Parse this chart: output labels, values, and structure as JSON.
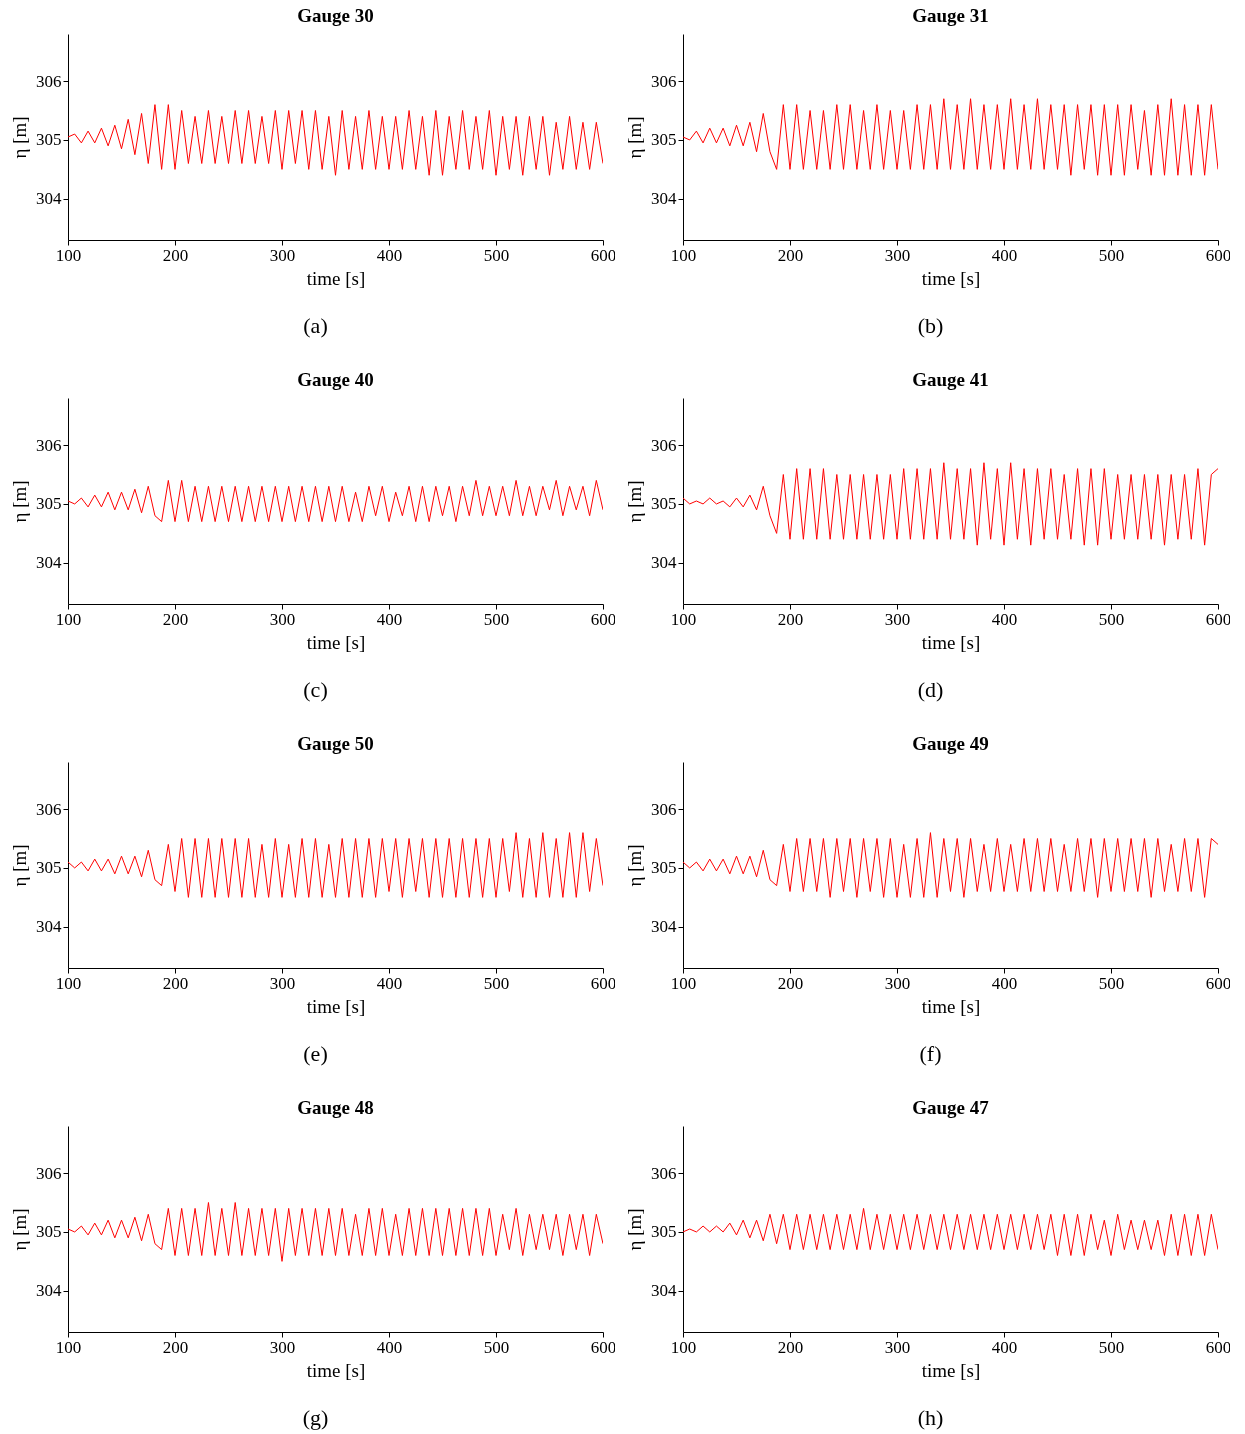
{
  "chart_data": [
    {
      "type": "line",
      "title": "Gauge 30",
      "xlabel": "time [s]",
      "ylabel": "η [m]",
      "annotations": [
        "(a)"
      ],
      "xlim": [
        100,
        600
      ],
      "ylim": [
        303.3,
        306.8
      ],
      "xticks": [
        100,
        200,
        300,
        400,
        500,
        600
      ],
      "yticks": [
        304,
        305,
        306
      ],
      "x": [
        100,
        106.25,
        112.5,
        118.75,
        125,
        131.25,
        137.5,
        143.75,
        150,
        156.25,
        162.5,
        168.75,
        175,
        181.25,
        187.5,
        193.75,
        200,
        206.25,
        212.5,
        218.75,
        225,
        231.25,
        237.5,
        243.75,
        250,
        256.25,
        262.5,
        268.75,
        275,
        281.25,
        287.5,
        293.75,
        300,
        306.25,
        312.5,
        318.75,
        325,
        331.25,
        337.5,
        343.75,
        350,
        356.25,
        362.5,
        368.75,
        375,
        381.25,
        387.5,
        393.75,
        400,
        406.25,
        412.5,
        418.75,
        425,
        431.25,
        437.5,
        443.75,
        450,
        456.25,
        462.5,
        468.75,
        475,
        481.25,
        487.5,
        493.75,
        500,
        506.25,
        512.5,
        518.75,
        525,
        531.25,
        537.5,
        543.75,
        550,
        556.25,
        562.5,
        568.75,
        575,
        581.25,
        587.5,
        593.75,
        600
      ],
      "series": [
        {
          "color": "#ff0000",
          "values": [
            305.05,
            305.1,
            304.95,
            305.15,
            304.95,
            305.2,
            304.9,
            305.25,
            304.85,
            305.35,
            304.75,
            305.45,
            304.6,
            305.6,
            304.5,
            305.6,
            304.5,
            305.5,
            304.6,
            305.4,
            304.6,
            305.5,
            304.6,
            305.4,
            304.6,
            305.5,
            304.6,
            305.5,
            304.6,
            305.4,
            304.6,
            305.5,
            304.5,
            305.5,
            304.6,
            305.5,
            304.5,
            305.5,
            304.5,
            305.4,
            304.4,
            305.5,
            304.5,
            305.4,
            304.5,
            305.5,
            304.5,
            305.4,
            304.5,
            305.4,
            304.5,
            305.5,
            304.5,
            305.4,
            304.4,
            305.5,
            304.4,
            305.4,
            304.5,
            305.5,
            304.5,
            305.4,
            304.5,
            305.5,
            304.4,
            305.4,
            304.5,
            305.4,
            304.4,
            305.4,
            304.5,
            305.4,
            304.4,
            305.3,
            304.5,
            305.4,
            304.5,
            305.3,
            304.5,
            305.3,
            304.6
          ]
        }
      ]
    },
    {
      "type": "line",
      "title": "Gauge 31",
      "xlabel": "time [s]",
      "ylabel": "η [m]",
      "annotations": [
        "(b)"
      ],
      "xlim": [
        100,
        600
      ],
      "ylim": [
        303.3,
        306.8
      ],
      "xticks": [
        100,
        200,
        300,
        400,
        500,
        600
      ],
      "yticks": [
        304,
        305,
        306
      ],
      "x": [
        100,
        106.25,
        112.5,
        118.75,
        125,
        131.25,
        137.5,
        143.75,
        150,
        156.25,
        162.5,
        168.75,
        175,
        181.25,
        187.5,
        193.75,
        200,
        206.25,
        212.5,
        218.75,
        225,
        231.25,
        237.5,
        243.75,
        250,
        256.25,
        262.5,
        268.75,
        275,
        281.25,
        287.5,
        293.75,
        300,
        306.25,
        312.5,
        318.75,
        325,
        331.25,
        337.5,
        343.75,
        350,
        356.25,
        362.5,
        368.75,
        375,
        381.25,
        387.5,
        393.75,
        400,
        406.25,
        412.5,
        418.75,
        425,
        431.25,
        437.5,
        443.75,
        450,
        456.25,
        462.5,
        468.75,
        475,
        481.25,
        487.5,
        493.75,
        500,
        506.25,
        512.5,
        518.75,
        525,
        531.25,
        537.5,
        543.75,
        550,
        556.25,
        562.5,
        568.75,
        575,
        581.25,
        587.5,
        593.75,
        600
      ],
      "series": [
        {
          "color": "#ff0000",
          "values": [
            305.05,
            305.0,
            305.15,
            304.95,
            305.2,
            304.95,
            305.2,
            304.9,
            305.25,
            304.9,
            305.3,
            304.8,
            305.45,
            304.8,
            304.5,
            305.6,
            304.5,
            305.6,
            304.5,
            305.5,
            304.5,
            305.5,
            304.5,
            305.6,
            304.5,
            305.6,
            304.5,
            305.5,
            304.5,
            305.6,
            304.5,
            305.5,
            304.5,
            305.5,
            304.5,
            305.6,
            304.5,
            305.6,
            304.5,
            305.7,
            304.5,
            305.6,
            304.5,
            305.7,
            304.5,
            305.6,
            304.5,
            305.6,
            304.5,
            305.7,
            304.5,
            305.6,
            304.5,
            305.7,
            304.5,
            305.6,
            304.5,
            305.6,
            304.4,
            305.6,
            304.5,
            305.6,
            304.4,
            305.6,
            304.4,
            305.6,
            304.4,
            305.6,
            304.5,
            305.5,
            304.4,
            305.6,
            304.4,
            305.7,
            304.4,
            305.6,
            304.4,
            305.6,
            304.4,
            305.6,
            304.5
          ]
        }
      ]
    },
    {
      "type": "line",
      "title": "Gauge 40",
      "xlabel": "time [s]",
      "ylabel": "η [m]",
      "annotations": [
        "(c)"
      ],
      "xlim": [
        100,
        600
      ],
      "ylim": [
        303.3,
        306.8
      ],
      "xticks": [
        100,
        200,
        300,
        400,
        500,
        600
      ],
      "yticks": [
        304,
        305,
        306
      ],
      "x": [
        100,
        106.25,
        112.5,
        118.75,
        125,
        131.25,
        137.5,
        143.75,
        150,
        156.25,
        162.5,
        168.75,
        175,
        181.25,
        187.5,
        193.75,
        200,
        206.25,
        212.5,
        218.75,
        225,
        231.25,
        237.5,
        243.75,
        250,
        256.25,
        262.5,
        268.75,
        275,
        281.25,
        287.5,
        293.75,
        300,
        306.25,
        312.5,
        318.75,
        325,
        331.25,
        337.5,
        343.75,
        350,
        356.25,
        362.5,
        368.75,
        375,
        381.25,
        387.5,
        393.75,
        400,
        406.25,
        412.5,
        418.75,
        425,
        431.25,
        437.5,
        443.75,
        450,
        456.25,
        462.5,
        468.75,
        475,
        481.25,
        487.5,
        493.75,
        500,
        506.25,
        512.5,
        518.75,
        525,
        531.25,
        537.5,
        543.75,
        550,
        556.25,
        562.5,
        568.75,
        575,
        581.25,
        587.5,
        593.75,
        600
      ],
      "series": [
        {
          "color": "#ff0000",
          "values": [
            305.05,
            305.0,
            305.1,
            304.95,
            305.15,
            304.95,
            305.2,
            304.9,
            305.2,
            304.9,
            305.25,
            304.85,
            305.3,
            304.8,
            304.7,
            305.4,
            304.7,
            305.4,
            304.7,
            305.3,
            304.7,
            305.3,
            304.7,
            305.3,
            304.7,
            305.3,
            304.7,
            305.3,
            304.7,
            305.3,
            304.7,
            305.3,
            304.7,
            305.3,
            304.7,
            305.3,
            304.7,
            305.3,
            304.7,
            305.3,
            304.7,
            305.3,
            304.7,
            305.2,
            304.7,
            305.3,
            304.8,
            305.3,
            304.7,
            305.2,
            304.8,
            305.3,
            304.7,
            305.3,
            304.7,
            305.3,
            304.8,
            305.3,
            304.7,
            305.3,
            304.8,
            305.4,
            304.8,
            305.3,
            304.8,
            305.3,
            304.8,
            305.4,
            304.8,
            305.3,
            304.8,
            305.3,
            304.9,
            305.4,
            304.8,
            305.3,
            304.9,
            305.3,
            304.8,
            305.4,
            304.9
          ]
        }
      ]
    },
    {
      "type": "line",
      "title": "Gauge 41",
      "xlabel": "time [s]",
      "ylabel": "η [m]",
      "annotations": [
        "(d)"
      ],
      "xlim": [
        100,
        600
      ],
      "ylim": [
        303.3,
        306.8
      ],
      "xticks": [
        100,
        200,
        300,
        400,
        500,
        600
      ],
      "yticks": [
        304,
        305,
        306
      ],
      "x": [
        100,
        106.25,
        112.5,
        118.75,
        125,
        131.25,
        137.5,
        143.75,
        150,
        156.25,
        162.5,
        168.75,
        175,
        181.25,
        187.5,
        193.75,
        200,
        206.25,
        212.5,
        218.75,
        225,
        231.25,
        237.5,
        243.75,
        250,
        256.25,
        262.5,
        268.75,
        275,
        281.25,
        287.5,
        293.75,
        300,
        306.25,
        312.5,
        318.75,
        325,
        331.25,
        337.5,
        343.75,
        350,
        356.25,
        362.5,
        368.75,
        375,
        381.25,
        387.5,
        393.75,
        400,
        406.25,
        412.5,
        418.75,
        425,
        431.25,
        437.5,
        443.75,
        450,
        456.25,
        462.5,
        468.75,
        475,
        481.25,
        487.5,
        493.75,
        500,
        506.25,
        512.5,
        518.75,
        525,
        531.25,
        537.5,
        543.75,
        550,
        556.25,
        562.5,
        568.75,
        575,
        581.25,
        587.5,
        593.75,
        600
      ],
      "series": [
        {
          "color": "#ff0000",
          "values": [
            305.1,
            305.0,
            305.05,
            305.0,
            305.1,
            305.0,
            305.05,
            304.95,
            305.1,
            304.95,
            305.15,
            304.9,
            305.3,
            304.8,
            304.5,
            305.5,
            304.4,
            305.6,
            304.4,
            305.6,
            304.4,
            305.6,
            304.4,
            305.5,
            304.4,
            305.5,
            304.4,
            305.5,
            304.4,
            305.5,
            304.4,
            305.5,
            304.4,
            305.6,
            304.4,
            305.6,
            304.4,
            305.6,
            304.4,
            305.7,
            304.4,
            305.6,
            304.4,
            305.6,
            304.3,
            305.7,
            304.4,
            305.6,
            304.3,
            305.7,
            304.4,
            305.6,
            304.3,
            305.6,
            304.4,
            305.6,
            304.4,
            305.5,
            304.4,
            305.6,
            304.3,
            305.6,
            304.3,
            305.6,
            304.4,
            305.5,
            304.4,
            305.5,
            304.4,
            305.5,
            304.4,
            305.5,
            304.3,
            305.5,
            304.4,
            305.5,
            304.4,
            305.6,
            304.3,
            305.5,
            305.6
          ]
        }
      ]
    },
    {
      "type": "line",
      "title": "Gauge 50",
      "xlabel": "time [s]",
      "ylabel": "η [m]",
      "annotations": [
        "(e)"
      ],
      "xlim": [
        100,
        600
      ],
      "ylim": [
        303.3,
        306.8
      ],
      "xticks": [
        100,
        200,
        300,
        400,
        500,
        600
      ],
      "yticks": [
        304,
        305,
        306
      ],
      "x": [
        100,
        106.25,
        112.5,
        118.75,
        125,
        131.25,
        137.5,
        143.75,
        150,
        156.25,
        162.5,
        168.75,
        175,
        181.25,
        187.5,
        193.75,
        200,
        206.25,
        212.5,
        218.75,
        225,
        231.25,
        237.5,
        243.75,
        250,
        256.25,
        262.5,
        268.75,
        275,
        281.25,
        287.5,
        293.75,
        300,
        306.25,
        312.5,
        318.75,
        325,
        331.25,
        337.5,
        343.75,
        350,
        356.25,
        362.5,
        368.75,
        375,
        381.25,
        387.5,
        393.75,
        400,
        406.25,
        412.5,
        418.75,
        425,
        431.25,
        437.5,
        443.75,
        450,
        456.25,
        462.5,
        468.75,
        475,
        481.25,
        487.5,
        493.75,
        500,
        506.25,
        512.5,
        518.75,
        525,
        531.25,
        537.5,
        543.75,
        550,
        556.25,
        562.5,
        568.75,
        575,
        581.25,
        587.5,
        593.75,
        600
      ],
      "series": [
        {
          "color": "#ff0000",
          "values": [
            305.1,
            305.0,
            305.1,
            304.95,
            305.15,
            304.95,
            305.15,
            304.9,
            305.2,
            304.9,
            305.2,
            304.85,
            305.3,
            304.8,
            304.7,
            305.4,
            304.6,
            305.5,
            304.5,
            305.5,
            304.5,
            305.5,
            304.5,
            305.5,
            304.5,
            305.5,
            304.5,
            305.5,
            304.5,
            305.4,
            304.5,
            305.5,
            304.5,
            305.4,
            304.5,
            305.5,
            304.5,
            305.5,
            304.5,
            305.4,
            304.5,
            305.5,
            304.5,
            305.5,
            304.5,
            305.5,
            304.5,
            305.5,
            304.6,
            305.5,
            304.5,
            305.5,
            304.6,
            305.5,
            304.5,
            305.5,
            304.5,
            305.5,
            304.5,
            305.5,
            304.5,
            305.5,
            304.5,
            305.5,
            304.5,
            305.5,
            304.6,
            305.6,
            304.5,
            305.5,
            304.5,
            305.6,
            304.5,
            305.5,
            304.5,
            305.6,
            304.5,
            305.6,
            304.6,
            305.5,
            304.7
          ]
        }
      ]
    },
    {
      "type": "line",
      "title": "Gauge 49",
      "xlabel": "time [s]",
      "ylabel": "η [m]",
      "annotations": [
        "(f)"
      ],
      "xlim": [
        100,
        600
      ],
      "ylim": [
        303.3,
        306.8
      ],
      "xticks": [
        100,
        200,
        300,
        400,
        500,
        600
      ],
      "yticks": [
        304,
        305,
        306
      ],
      "x": [
        100,
        106.25,
        112.5,
        118.75,
        125,
        131.25,
        137.5,
        143.75,
        150,
        156.25,
        162.5,
        168.75,
        175,
        181.25,
        187.5,
        193.75,
        200,
        206.25,
        212.5,
        218.75,
        225,
        231.25,
        237.5,
        243.75,
        250,
        256.25,
        262.5,
        268.75,
        275,
        281.25,
        287.5,
        293.75,
        300,
        306.25,
        312.5,
        318.75,
        325,
        331.25,
        337.5,
        343.75,
        350,
        356.25,
        362.5,
        368.75,
        375,
        381.25,
        387.5,
        393.75,
        400,
        406.25,
        412.5,
        418.75,
        425,
        431.25,
        437.5,
        443.75,
        450,
        456.25,
        462.5,
        468.75,
        475,
        481.25,
        487.5,
        493.75,
        500,
        506.25,
        512.5,
        518.75,
        525,
        531.25,
        537.5,
        543.75,
        550,
        556.25,
        562.5,
        568.75,
        575,
        581.25,
        587.5,
        593.75,
        600
      ],
      "series": [
        {
          "color": "#ff0000",
          "values": [
            305.1,
            305.0,
            305.1,
            304.95,
            305.15,
            304.95,
            305.15,
            304.9,
            305.2,
            304.9,
            305.2,
            304.85,
            305.3,
            304.8,
            304.7,
            305.4,
            304.6,
            305.5,
            304.6,
            305.5,
            304.6,
            305.5,
            304.5,
            305.5,
            304.6,
            305.5,
            304.5,
            305.5,
            304.6,
            305.5,
            304.5,
            305.5,
            304.5,
            305.4,
            304.5,
            305.5,
            304.5,
            305.6,
            304.5,
            305.5,
            304.6,
            305.5,
            304.5,
            305.5,
            304.6,
            305.4,
            304.6,
            305.5,
            304.6,
            305.4,
            304.6,
            305.5,
            304.6,
            305.5,
            304.6,
            305.5,
            304.6,
            305.4,
            304.6,
            305.5,
            304.6,
            305.5,
            304.5,
            305.5,
            304.6,
            305.5,
            304.6,
            305.5,
            304.6,
            305.5,
            304.5,
            305.5,
            304.6,
            305.4,
            304.6,
            305.5,
            304.6,
            305.5,
            304.5,
            305.5,
            305.4
          ]
        }
      ]
    },
    {
      "type": "line",
      "title": "Gauge 48",
      "xlabel": "time [s]",
      "ylabel": "η [m]",
      "annotations": [
        "(g)"
      ],
      "xlim": [
        100,
        600
      ],
      "ylim": [
        303.3,
        306.8
      ],
      "xticks": [
        100,
        200,
        300,
        400,
        500,
        600
      ],
      "yticks": [
        304,
        305,
        306
      ],
      "x": [
        100,
        106.25,
        112.5,
        118.75,
        125,
        131.25,
        137.5,
        143.75,
        150,
        156.25,
        162.5,
        168.75,
        175,
        181.25,
        187.5,
        193.75,
        200,
        206.25,
        212.5,
        218.75,
        225,
        231.25,
        237.5,
        243.75,
        250,
        256.25,
        262.5,
        268.75,
        275,
        281.25,
        287.5,
        293.75,
        300,
        306.25,
        312.5,
        318.75,
        325,
        331.25,
        337.5,
        343.75,
        350,
        356.25,
        362.5,
        368.75,
        375,
        381.25,
        387.5,
        393.75,
        400,
        406.25,
        412.5,
        418.75,
        425,
        431.25,
        437.5,
        443.75,
        450,
        456.25,
        462.5,
        468.75,
        475,
        481.25,
        487.5,
        493.75,
        500,
        506.25,
        512.5,
        518.75,
        525,
        531.25,
        537.5,
        543.75,
        550,
        556.25,
        562.5,
        568.75,
        575,
        581.25,
        587.5,
        593.75,
        600
      ],
      "series": [
        {
          "color": "#ff0000",
          "values": [
            305.05,
            305.0,
            305.1,
            304.95,
            305.15,
            304.95,
            305.2,
            304.9,
            305.2,
            304.9,
            305.25,
            304.85,
            305.3,
            304.8,
            304.7,
            305.4,
            304.6,
            305.4,
            304.6,
            305.4,
            304.6,
            305.5,
            304.6,
            305.4,
            304.6,
            305.5,
            304.6,
            305.4,
            304.6,
            305.4,
            304.6,
            305.4,
            304.5,
            305.4,
            304.6,
            305.4,
            304.6,
            305.4,
            304.6,
            305.4,
            304.6,
            305.4,
            304.6,
            305.3,
            304.6,
            305.4,
            304.6,
            305.4,
            304.6,
            305.3,
            304.6,
            305.4,
            304.6,
            305.4,
            304.6,
            305.4,
            304.6,
            305.4,
            304.6,
            305.4,
            304.6,
            305.4,
            304.6,
            305.4,
            304.6,
            305.3,
            304.7,
            305.4,
            304.6,
            305.3,
            304.7,
            305.3,
            304.7,
            305.3,
            304.6,
            305.3,
            304.7,
            305.3,
            304.6,
            305.3,
            304.8
          ]
        }
      ]
    },
    {
      "type": "line",
      "title": "Gauge 47",
      "xlabel": "time [s]",
      "ylabel": "η [m]",
      "annotations": [
        "(h)"
      ],
      "xlim": [
        100,
        600
      ],
      "ylim": [
        303.3,
        306.8
      ],
      "xticks": [
        100,
        200,
        300,
        400,
        500,
        600
      ],
      "yticks": [
        304,
        305,
        306
      ],
      "x": [
        100,
        106.25,
        112.5,
        118.75,
        125,
        131.25,
        137.5,
        143.75,
        150,
        156.25,
        162.5,
        168.75,
        175,
        181.25,
        187.5,
        193.75,
        200,
        206.25,
        212.5,
        218.75,
        225,
        231.25,
        237.5,
        243.75,
        250,
        256.25,
        262.5,
        268.75,
        275,
        281.25,
        287.5,
        293.75,
        300,
        306.25,
        312.5,
        318.75,
        325,
        331.25,
        337.5,
        343.75,
        350,
        356.25,
        362.5,
        368.75,
        375,
        381.25,
        387.5,
        393.75,
        400,
        406.25,
        412.5,
        418.75,
        425,
        431.25,
        437.5,
        443.75,
        450,
        456.25,
        462.5,
        468.75,
        475,
        481.25,
        487.5,
        493.75,
        500,
        506.25,
        512.5,
        518.75,
        525,
        531.25,
        537.5,
        543.75,
        550,
        556.25,
        562.5,
        568.75,
        575,
        581.25,
        587.5,
        593.75,
        600
      ],
      "series": [
        {
          "color": "#ff0000",
          "values": [
            305.0,
            305.05,
            305.0,
            305.1,
            305.0,
            305.1,
            305.0,
            305.15,
            304.95,
            305.2,
            304.9,
            305.2,
            304.85,
            305.3,
            304.8,
            305.3,
            304.7,
            305.3,
            304.7,
            305.3,
            304.7,
            305.3,
            304.7,
            305.3,
            304.7,
            305.3,
            304.7,
            305.4,
            304.7,
            305.3,
            304.7,
            305.3,
            304.7,
            305.3,
            304.7,
            305.3,
            304.7,
            305.3,
            304.7,
            305.3,
            304.7,
            305.3,
            304.7,
            305.3,
            304.7,
            305.3,
            304.7,
            305.3,
            304.7,
            305.3,
            304.7,
            305.3,
            304.7,
            305.3,
            304.7,
            305.3,
            304.6,
            305.3,
            304.6,
            305.3,
            304.6,
            305.3,
            304.7,
            305.2,
            304.6,
            305.3,
            304.7,
            305.2,
            304.7,
            305.2,
            304.7,
            305.2,
            304.6,
            305.3,
            304.6,
            305.3,
            304.6,
            305.3,
            304.6,
            305.3,
            304.7
          ]
        }
      ]
    }
  ]
}
